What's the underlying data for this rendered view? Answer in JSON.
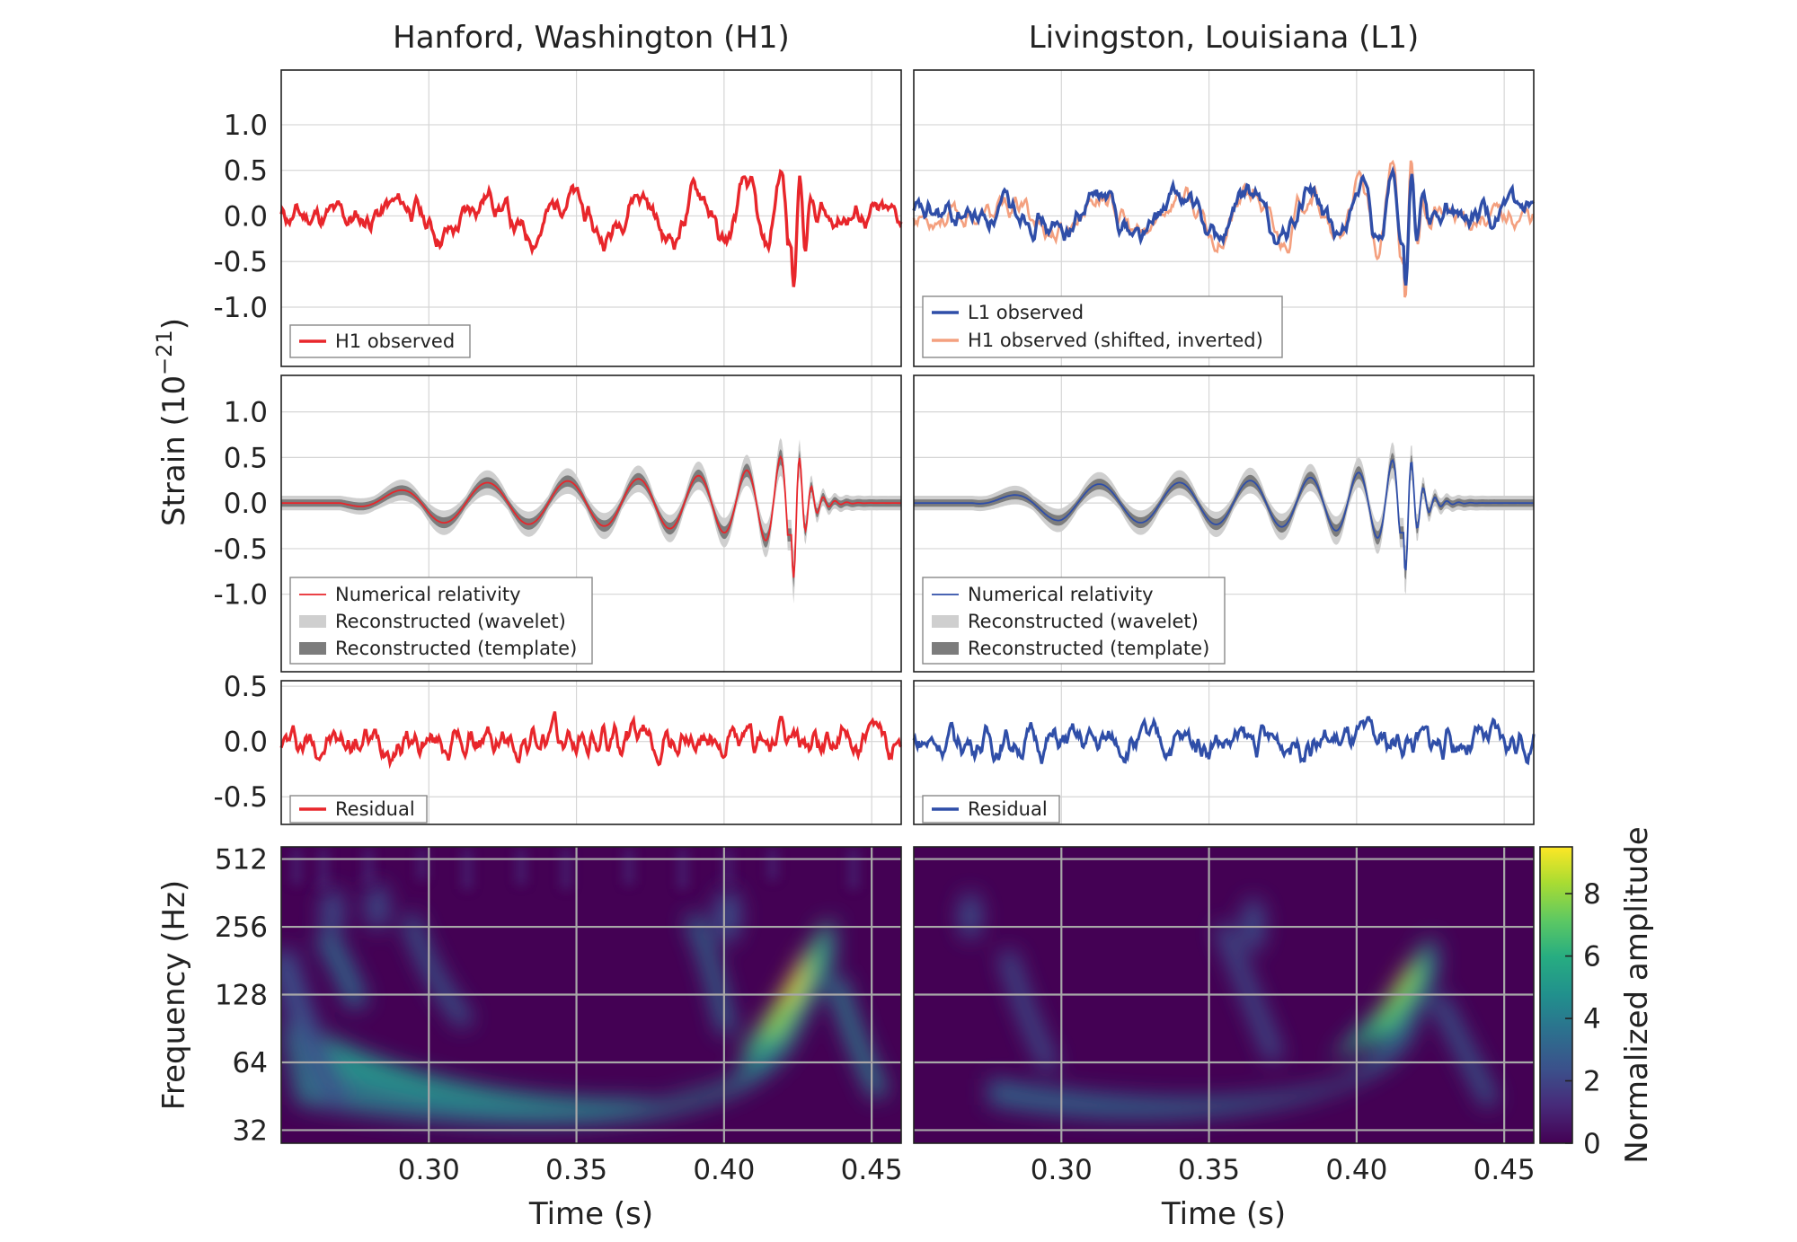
{
  "panels": {
    "h1_title": "Hanford, Washington (H1)",
    "l1_title": "Livingston, Louisiana (L1)"
  },
  "axes": {
    "strain_label": "Strain (10",
    "strain_exp": "−21",
    "strain_close": ")",
    "freq_label": "Frequency (Hz)",
    "time_label": "Time (s)",
    "colorbar_label": "Normalized amplitude"
  },
  "legends": {
    "h1_observed": "H1 observed",
    "l1_observed": "L1 observed",
    "h1_shifted": "H1 observed (shifted, inverted)",
    "nr": "Numerical relativity",
    "wavelet": "Reconstructed (wavelet)",
    "template": "Reconstructed (template)",
    "residual": "Residual"
  },
  "colors": {
    "h1": "#e8262b",
    "l1": "#2f4ea8",
    "h1_shifted": "#f4a07f",
    "wavelet_band": "#cfcfcf",
    "template_band": "#7c7c7c"
  },
  "chart_data": {
    "type": "line",
    "x_ticks": [
      "0.30",
      "0.35",
      "0.40",
      "0.45"
    ],
    "x_range": [
      0.25,
      0.46
    ],
    "strain_ticks": [
      "1.0",
      "0.5",
      "0.0",
      "-0.5",
      "-1.0"
    ],
    "residual_ticks": [
      "0.5",
      "0.0",
      "-0.5"
    ],
    "freq_ticks": [
      "512",
      "256",
      "128",
      "64",
      "32"
    ],
    "colorbar_ticks": [
      "8",
      "6",
      "4",
      "2",
      "0"
    ],
    "colorbar_range": [
      0,
      9.5
    ],
    "series": [
      {
        "name": "H1 observed",
        "panel": "H1 row 1"
      },
      {
        "name": "L1 observed",
        "panel": "L1 row 1"
      },
      {
        "name": "H1 observed (shifted, inverted)",
        "panel": "L1 row 1"
      },
      {
        "name": "Numerical relativity",
        "panel": "H1/L1 row 2"
      },
      {
        "name": "Reconstructed (wavelet)",
        "panel": "H1/L1 row 2"
      },
      {
        "name": "Reconstructed (template)",
        "panel": "H1/L1 row 2"
      },
      {
        "name": "Residual",
        "panel": "H1/L1 row 3"
      }
    ],
    "key_points": {
      "h1_peak_strain": 1.1,
      "l1_peak_strain": 1.05,
      "h1_peak_time": 0.405,
      "l1_peak_time": 0.418,
      "spectrogram_peak_frequency": 150,
      "spectrogram_peak_time": 0.42
    }
  }
}
